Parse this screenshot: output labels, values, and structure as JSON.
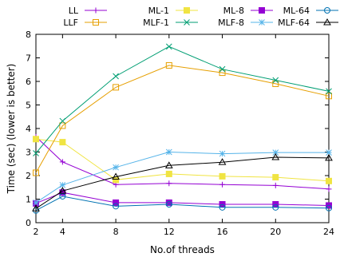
{
  "chart_data": {
    "type": "line",
    "xlabel": "No.of threads",
    "ylabel": "Time (sec) (lower is better)",
    "x": [
      2,
      4,
      8,
      12,
      16,
      20,
      24
    ],
    "xlim": [
      2,
      24
    ],
    "ylim": [
      0,
      8
    ],
    "xticks": [
      2,
      4,
      8,
      12,
      16,
      20,
      24
    ],
    "yticks": [
      0,
      1,
      2,
      3,
      4,
      5,
      6,
      7,
      8
    ],
    "grid": false,
    "legend_position": "top",
    "series": [
      {
        "name": "LL",
        "color": "#9400d3",
        "marker": "plus",
        "values": [
          3.65,
          2.58,
          1.62,
          1.67,
          1.62,
          1.58,
          1.43
        ]
      },
      {
        "name": "ML-1",
        "color": "#f0e442",
        "marker": "square-filled",
        "values": [
          3.55,
          3.42,
          1.82,
          2.07,
          1.97,
          1.93,
          1.77
        ]
      },
      {
        "name": "ML-8",
        "color": "#9400d3",
        "marker": "square-filled",
        "values": [
          0.82,
          1.28,
          0.85,
          0.85,
          0.78,
          0.78,
          0.73
        ]
      },
      {
        "name": "ML-64",
        "color": "#0072b2",
        "marker": "circle-open",
        "values": [
          0.52,
          1.12,
          0.7,
          0.78,
          0.65,
          0.65,
          0.62
        ]
      },
      {
        "name": "LLF",
        "color": "#e69f00",
        "marker": "square-open",
        "values": [
          2.12,
          4.12,
          5.75,
          6.68,
          6.37,
          5.9,
          5.38
        ]
      },
      {
        "name": "MLF-1",
        "color": "#009e73",
        "marker": "x",
        "values": [
          2.95,
          4.32,
          6.22,
          7.48,
          6.52,
          6.05,
          5.58
        ]
      },
      {
        "name": "MLF-8",
        "color": "#56b4e9",
        "marker": "star",
        "values": [
          0.85,
          1.6,
          2.35,
          3.0,
          2.93,
          2.98,
          2.98
        ]
      },
      {
        "name": "MLF-64",
        "color": "#000000",
        "marker": "triangle-open",
        "values": [
          0.6,
          1.35,
          1.95,
          2.43,
          2.57,
          2.78,
          2.75
        ]
      }
    ]
  }
}
